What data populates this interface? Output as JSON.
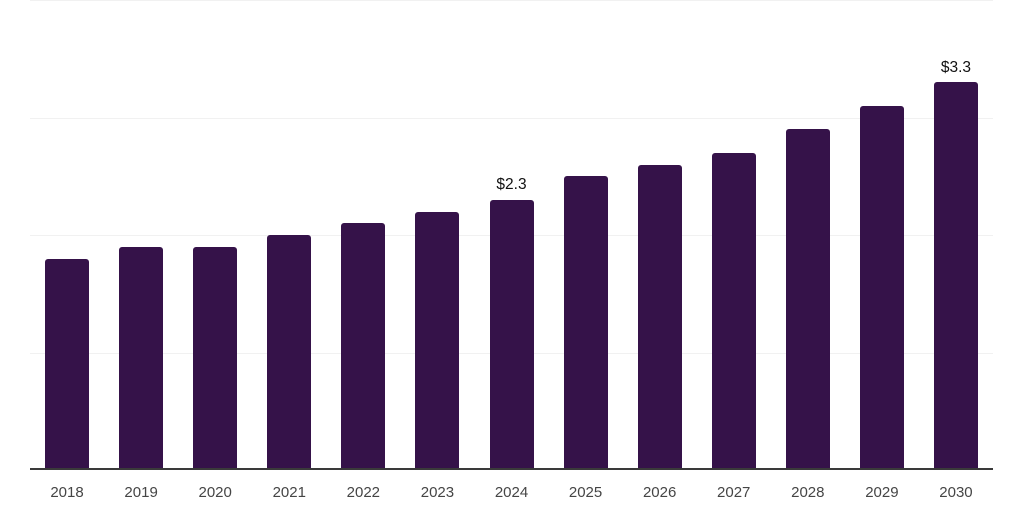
{
  "chart_data": {
    "type": "bar",
    "title": "",
    "xlabel": "",
    "ylabel": "",
    "categories": [
      "2018",
      "2019",
      "2020",
      "2021",
      "2022",
      "2023",
      "2024",
      "2025",
      "2026",
      "2027",
      "2028",
      "2029",
      "2030"
    ],
    "values": [
      1.8,
      1.9,
      1.9,
      2.0,
      2.1,
      2.2,
      2.3,
      2.5,
      2.6,
      2.7,
      2.9,
      3.1,
      3.3
    ],
    "data_labels": {
      "2024": "$2.3",
      "2030": "$3.3"
    },
    "ylim": [
      0,
      4
    ],
    "y_gridlines": [
      1,
      2,
      3,
      4
    ],
    "grid": "horizontal-only",
    "y_axis_labels": "none",
    "legend_position": "none",
    "bar_color": "#351249",
    "gridline_color": "#f1f1f1",
    "axis_line_color": "#3a3a3a",
    "tick_label_color": "#454545",
    "value_label_color": "#111111",
    "background_color": "#ffffff"
  }
}
